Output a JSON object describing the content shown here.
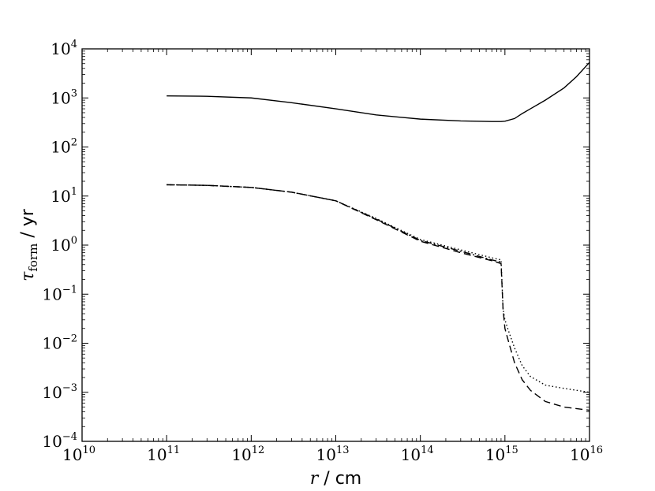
{
  "chart_data": {
    "type": "line",
    "title": "",
    "xlabel": {
      "symbol": "r",
      "unit": " / cm"
    },
    "ylabel": {
      "symbol": "τ",
      "subscript": "form",
      "unit": " / yr"
    },
    "xscale": "log",
    "yscale": "log",
    "xlim": [
      10000000000.0,
      1e+16
    ],
    "ylim": [
      0.0001,
      10000.0
    ],
    "x_ticks": [
      {
        "base": "10",
        "exp": "10",
        "value": 10000000000.0
      },
      {
        "base": "10",
        "exp": "11",
        "value": 100000000000.0
      },
      {
        "base": "10",
        "exp": "12",
        "value": 1000000000000.0
      },
      {
        "base": "10",
        "exp": "13",
        "value": 10000000000000.0
      },
      {
        "base": "10",
        "exp": "14",
        "value": 100000000000000.0
      },
      {
        "base": "10",
        "exp": "15",
        "value": 1000000000000000.0
      },
      {
        "base": "10",
        "exp": "16",
        "value": 1e+16
      }
    ],
    "y_ticks": [
      {
        "base": "10",
        "exp": "−4",
        "value": 0.0001
      },
      {
        "base": "10",
        "exp": "−3",
        "value": 0.001
      },
      {
        "base": "10",
        "exp": "−2",
        "value": 0.01
      },
      {
        "base": "10",
        "exp": "−1",
        "value": 0.1
      },
      {
        "base": "10",
        "exp": "0",
        "value": 1
      },
      {
        "base": "10",
        "exp": "1",
        "value": 10
      },
      {
        "base": "10",
        "exp": "2",
        "value": 100
      },
      {
        "base": "10",
        "exp": "3",
        "value": 1000
      },
      {
        "base": "10",
        "exp": "4",
        "value": 10000
      }
    ],
    "grid": false,
    "legend": "none",
    "series": [
      {
        "style": "solid",
        "color": "#000000",
        "x": [
          100000000000.0,
          300000000000.0,
          1000000000000.0,
          3000000000000.0,
          10000000000000.0,
          30000000000000.0,
          100000000000000.0,
          300000000000000.0,
          700000000000000.0,
          900000000000000.0,
          1000000000000000.0,
          1300000000000000.0,
          1600000000000000.0,
          2000000000000000.0,
          3000000000000000.0,
          5000000000000000.0,
          7000000000000000.0,
          1e+16
        ],
        "y": [
          1100,
          1080,
          1000,
          800,
          600,
          450,
          370,
          340,
          330,
          330,
          335,
          380,
          480,
          600,
          900,
          1600,
          2700,
          5300
        ]
      },
      {
        "style": "dotted",
        "color": "#000000",
        "x": [
          100000000000.0,
          300000000000.0,
          1000000000000.0,
          3000000000000.0,
          10000000000000.0,
          30000000000000.0,
          100000000000000.0,
          300000000000000.0,
          700000000000000.0,
          900000000000000.0,
          950000000000000.0,
          1000000000000000.0,
          1100000000000000.0,
          1300000000000000.0,
          1600000000000000.0,
          2000000000000000.0,
          3000000000000000.0,
          5000000000000000.0,
          1e+16
        ],
        "y": [
          17,
          16.5,
          15,
          12,
          8,
          3.5,
          1.3,
          0.8,
          0.55,
          0.5,
          0.05,
          0.03,
          0.018,
          0.008,
          0.0035,
          0.0021,
          0.0014,
          0.0012,
          0.001
        ]
      },
      {
        "style": "dashed",
        "color": "#000000",
        "x": [
          100000000000.0,
          300000000000.0,
          1000000000000.0,
          3000000000000.0,
          10000000000000.0,
          30000000000000.0,
          100000000000000.0,
          300000000000000.0,
          700000000000000.0,
          900000000000000.0,
          950000000000000.0,
          1000000000000000.0,
          1100000000000000.0,
          1300000000000000.0,
          1600000000000000.0,
          2000000000000000.0,
          3000000000000000.0,
          5000000000000000.0,
          1e+16
        ],
        "y": [
          17,
          16.5,
          15,
          12,
          8,
          3.3,
          1.2,
          0.7,
          0.48,
          0.42,
          0.05,
          0.02,
          0.011,
          0.004,
          0.0018,
          0.0011,
          0.00065,
          0.0005,
          0.00043
        ]
      },
      {
        "style": "dashdot",
        "color": "#000000",
        "x": [
          100000000000.0,
          300000000000.0,
          1000000000000.0,
          3000000000000.0,
          10000000000000.0,
          30000000000000.0,
          100000000000000.0,
          300000000000000.0,
          700000000000000.0,
          900000000000000.0
        ],
        "y": [
          17,
          16.5,
          15,
          12,
          8,
          3.4,
          1.25,
          0.75,
          0.5,
          0.45
        ]
      }
    ]
  }
}
